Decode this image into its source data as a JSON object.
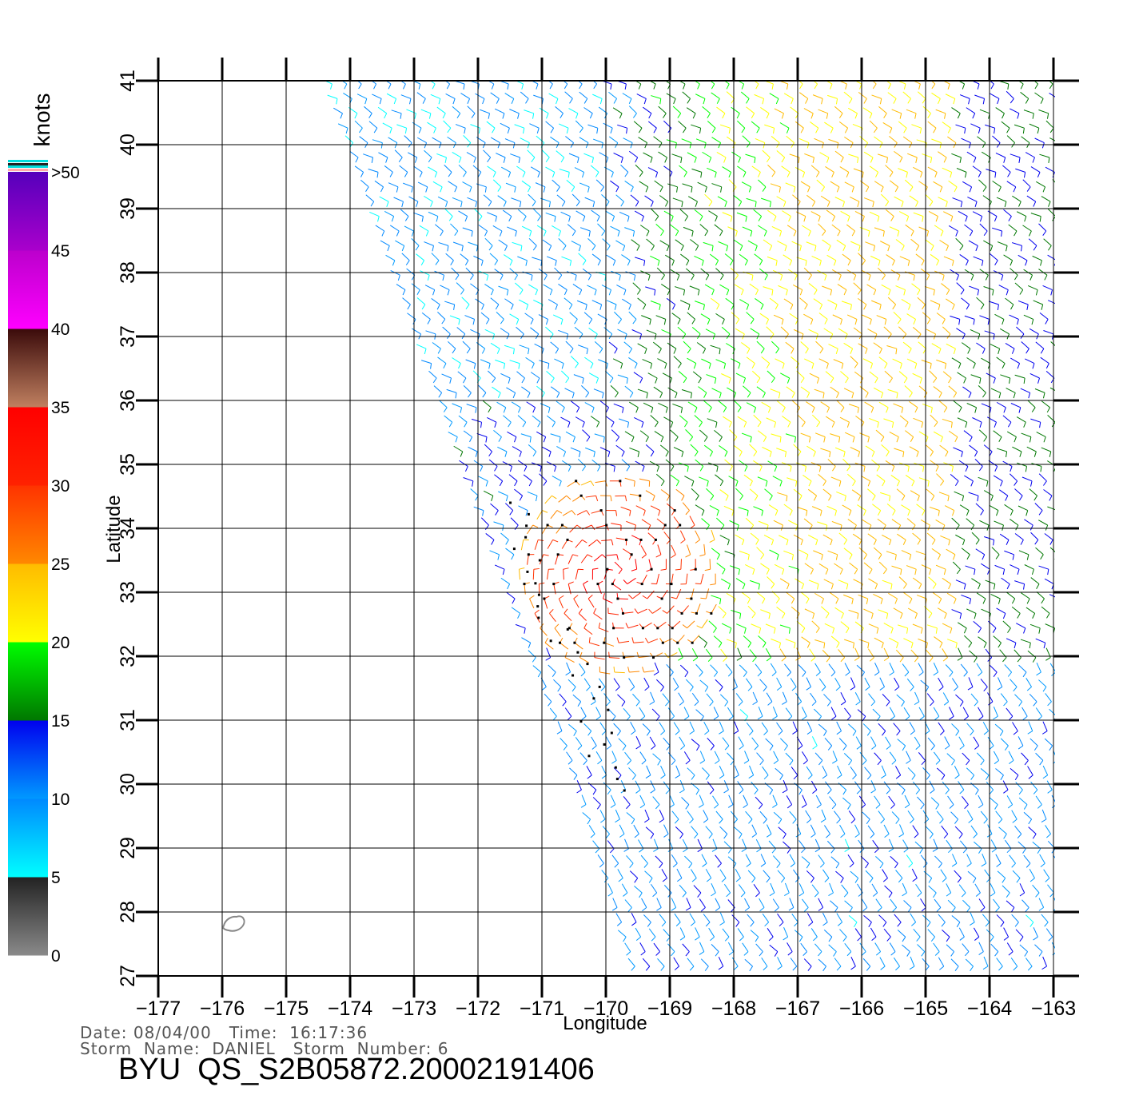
{
  "map": {
    "x_axis_label": "Longitude",
    "y_axis_label": "Latitude",
    "lon_ticks": [
      -177,
      -176,
      -175,
      -174,
      -173,
      -172,
      -171,
      -170,
      -169,
      -168,
      -167,
      -166,
      -165,
      -164,
      -163
    ],
    "lat_ticks": [
      27,
      28,
      29,
      30,
      31,
      32,
      33,
      34,
      35,
      36,
      37,
      38,
      39,
      40,
      41
    ],
    "lon_range": [
      -177,
      -163
    ],
    "lat_range": [
      27,
      41
    ],
    "grid": true
  },
  "colorbar": {
    "unit": "knots",
    "labels": [
      "0",
      "5",
      "10",
      "15",
      "20",
      "25",
      "30",
      "35",
      "40",
      "45",
      ">50"
    ],
    "bands": [
      {
        "from": 0,
        "to": 5,
        "colors": [
          "#8a8a8a",
          "#222222"
        ]
      },
      {
        "from": 5,
        "to": 10,
        "colors": [
          "#00ffff",
          "#0088ff"
        ]
      },
      {
        "from": 10,
        "to": 15,
        "colors": [
          "#0099ff",
          "#0000ee"
        ]
      },
      {
        "from": 15,
        "to": 20,
        "colors": [
          "#007700",
          "#00ff00"
        ]
      },
      {
        "from": 20,
        "to": 25,
        "colors": [
          "#ffff00",
          "#ffbb00"
        ]
      },
      {
        "from": 25,
        "to": 30,
        "colors": [
          "#ff8800",
          "#ff3300"
        ]
      },
      {
        "from": 30,
        "to": 35,
        "colors": [
          "#ff2200",
          "#ff0000"
        ]
      },
      {
        "from": 35,
        "to": 40,
        "colors": [
          "#c08060",
          "#3a0a0a"
        ]
      },
      {
        "from": 40,
        "to": 45,
        "colors": [
          "#ff00ff",
          "#bb00cc"
        ]
      },
      {
        "from": 45,
        "to": 50,
        "colors": [
          "#aa00cc",
          "#5500bb"
        ]
      }
    ]
  },
  "wind_field": {
    "swath_west_edge": [
      [
        -174.3,
        41
      ],
      [
        -170.5,
        30.3
      ],
      [
        -169.5,
        27
      ]
    ],
    "vortex_center": {
      "lon": -169.8,
      "lat": 33.3
    },
    "rain_flag_color": "#000000"
  },
  "island": {
    "lon": -175.8,
    "lat": 27.85
  },
  "footer": {
    "date_label": "Date:",
    "date": "08/04/00",
    "time_label": "Time:",
    "time": "16:17:36",
    "storm_name_label": "Storm  Name:",
    "storm_name": "DANIEL",
    "storm_number_label": "Storm  Number:",
    "storm_number": "6",
    "product_id": "BYU  QS_S2B05872.20002191406"
  }
}
